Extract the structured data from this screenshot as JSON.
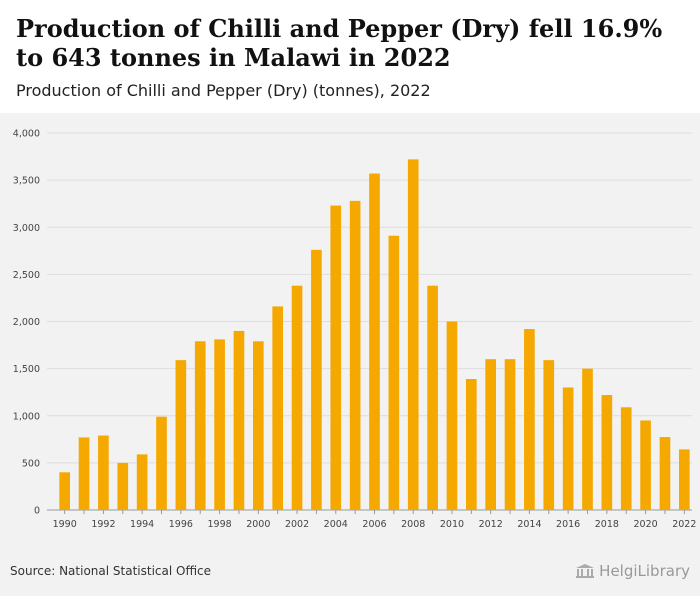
{
  "header": {
    "title": "Production of Chilli and Pepper (Dry) fell 16.9% to 643 tonnes in Malawi in 2022",
    "subtitle": "Production of Chilli and Pepper (Dry) (tonnes), 2022"
  },
  "footer": {
    "source": "Source: National Statistical Office",
    "logo_text": "HelgiLibrary"
  },
  "colors": {
    "bar": "#F5A800",
    "grid": "#dddddd",
    "background": "#f2f2f2"
  },
  "chart_data": {
    "type": "bar",
    "title": "Production of Chilli and Pepper (Dry) (tonnes), 2022",
    "xlabel": "",
    "ylabel": "",
    "ylim": [
      0,
      4000
    ],
    "yticks": [
      0,
      500,
      1000,
      1500,
      2000,
      2500,
      3000,
      3500,
      4000
    ],
    "ytick_labels": [
      "0",
      "500",
      "1,000",
      "1,500",
      "2,000",
      "2,500",
      "3,000",
      "3,500",
      "4,000"
    ],
    "categories": [
      "1990",
      "1991",
      "1992",
      "1993",
      "1994",
      "1995",
      "1996",
      "1997",
      "1998",
      "1999",
      "2000",
      "2001",
      "2002",
      "2003",
      "2004",
      "2005",
      "2006",
      "2007",
      "2008",
      "2009",
      "2010",
      "2011",
      "2012",
      "2013",
      "2014",
      "2015",
      "2016",
      "2017",
      "2018",
      "2019",
      "2020",
      "2021",
      "2022"
    ],
    "xtick_labels": [
      "1990",
      "",
      "1992",
      "",
      "1994",
      "",
      "1996",
      "",
      "1998",
      "",
      "2000",
      "",
      "2002",
      "",
      "2004",
      "",
      "2006",
      "",
      "2008",
      "",
      "2010",
      "",
      "2012",
      "",
      "2014",
      "",
      "2016",
      "",
      "2018",
      "",
      "2020",
      "",
      "2022"
    ],
    "values": [
      400,
      770,
      790,
      500,
      590,
      990,
      1590,
      1790,
      1810,
      1900,
      1790,
      2160,
      2380,
      2760,
      3230,
      3280,
      3570,
      2910,
      3720,
      2380,
      2000,
      1390,
      1600,
      1600,
      1920,
      1590,
      1300,
      1500,
      1220,
      1090,
      950,
      774,
      643
    ],
    "grid": true,
    "legend": "none"
  }
}
